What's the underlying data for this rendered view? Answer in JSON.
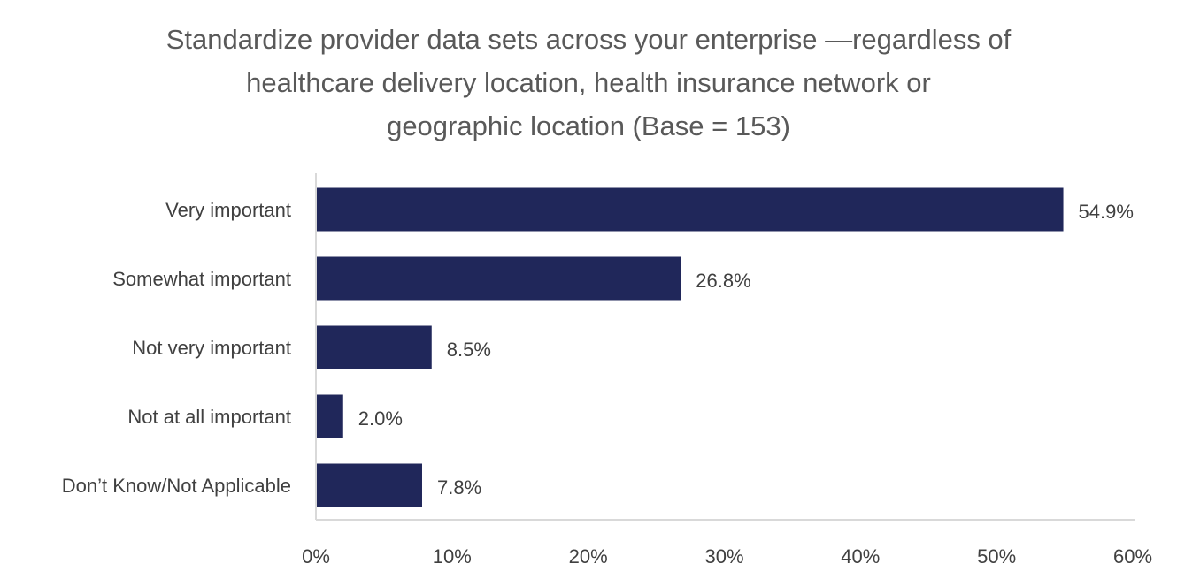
{
  "chart_data": {
    "type": "bar",
    "orientation": "horizontal",
    "title_lines": [
      "Standardize provider data sets across your enterprise —regardless of",
      "healthcare delivery location, health insurance network or",
      "geographic location (Base = 153)"
    ],
    "categories": [
      "Very important",
      "Somewhat important",
      "Not very important",
      "Not at all important",
      "Don’t Know/Not Applicable"
    ],
    "values": [
      54.9,
      26.8,
      8.5,
      2.0,
      7.8
    ],
    "data_labels": [
      "54.9%",
      "26.8%",
      "8.5%",
      "2.0%",
      "7.8%"
    ],
    "xlim": [
      0,
      60
    ],
    "xticks": [
      "0%",
      "10%",
      "20%",
      "30%",
      "40%",
      "50%",
      "60%"
    ],
    "xlabel": "",
    "ylabel": "",
    "grid": false,
    "legend": "none",
    "bar_color": "#20275A",
    "axis_color": "#D9D9D9"
  }
}
